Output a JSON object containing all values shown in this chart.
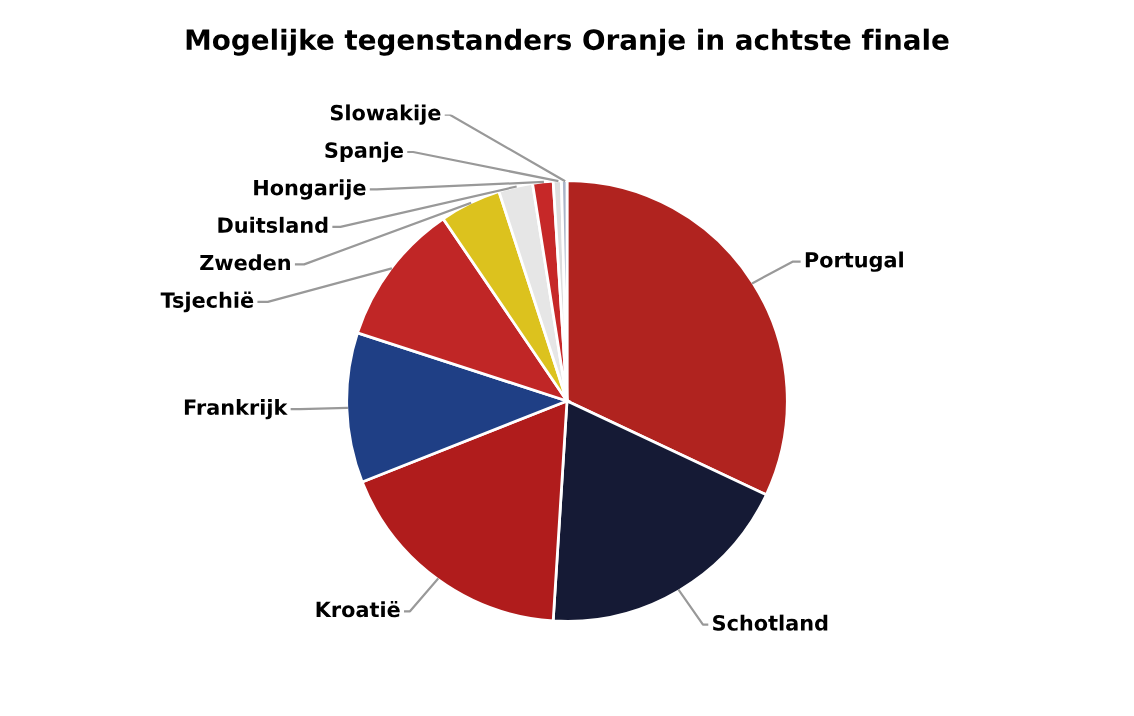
{
  "chart_data": {
    "type": "pie",
    "title": "Mogelijke tegenstanders Oranje in achtste finale",
    "categories": [
      "Portugal",
      "Schotland",
      "Kroatië",
      "Frankrijk",
      "Tsjechië",
      "Zweden",
      "Duitsland",
      "Hongarije",
      "Spanje",
      "Slowakije"
    ],
    "values": [
      32,
      19,
      18,
      11,
      10.5,
      4.5,
      2.5,
      1.5,
      0.6,
      0.4
    ],
    "colors": [
      "#b0231f",
      "#151a35",
      "#b01c1c",
      "#1f3f85",
      "#c02626",
      "#dcc21e",
      "#e6e6e6",
      "#c62828",
      "#dddddd",
      "#aab4c8"
    ],
    "legend": false
  }
}
